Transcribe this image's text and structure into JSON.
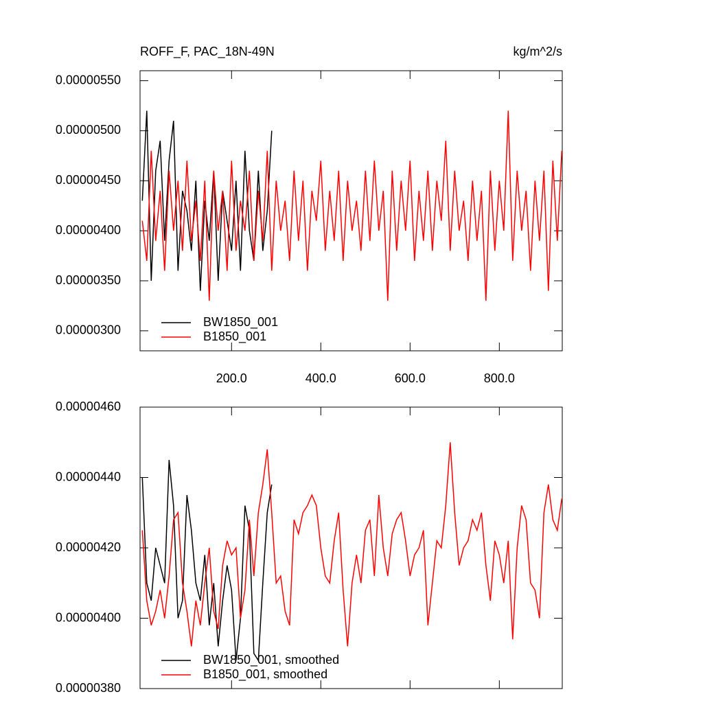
{
  "chart_data": [
    {
      "type": "line",
      "title": "ROFF_F, PAC_18N-49N",
      "units": "kg/m^2/s",
      "legend": "lower left",
      "xlim": [
        -5,
        941
      ],
      "xticks": [
        {
          "value": 200,
          "label": "200.0"
        },
        {
          "value": 400,
          "label": "400.0"
        },
        {
          "value": 600,
          "label": "600.0"
        },
        {
          "value": 800,
          "label": "800.0"
        }
      ],
      "ylim": [
        2.8e-06,
        5.6e-06
      ],
      "yticks": [
        {
          "value": 3e-06,
          "label": "0.00000300"
        },
        {
          "value": 3.5e-06,
          "label": "0.00000350"
        },
        {
          "value": 4e-06,
          "label": "0.00000400"
        },
        {
          "value": 4.5e-06,
          "label": "0.00000450"
        },
        {
          "value": 5e-06,
          "label": "0.00000500"
        },
        {
          "value": 5.5e-06,
          "label": "0.00000550"
        }
      ],
      "series": [
        {
          "name": "BW1850_001",
          "color": "#000000",
          "x": [
            0,
            10,
            20,
            30,
            40,
            50,
            60,
            70,
            80,
            90,
            100,
            110,
            120,
            130,
            140,
            150,
            160,
            170,
            180,
            190,
            200,
            210,
            220,
            230,
            240,
            250,
            260,
            270,
            280,
            290
          ],
          "values": [
            4.3e-06,
            5.2e-06,
            3.5e-06,
            4.6e-06,
            4.9e-06,
            3.9e-06,
            4.7e-06,
            5.1e-06,
            3.6e-06,
            4.4e-06,
            4.2e-06,
            3.8e-06,
            4.5e-06,
            3.4e-06,
            4.3e-06,
            3.9e-06,
            4.6e-06,
            3.5e-06,
            4.4e-06,
            4.1e-06,
            3.8e-06,
            4.5e-06,
            3.6e-06,
            4.8e-06,
            4e-06,
            3.7e-06,
            4.6e-06,
            3.8e-06,
            4.2e-06,
            5e-06
          ]
        },
        {
          "name": "B1850_001",
          "color": "#ff0000",
          "x": [
            0,
            10,
            20,
            30,
            40,
            50,
            60,
            70,
            80,
            90,
            100,
            110,
            120,
            130,
            140,
            150,
            160,
            170,
            180,
            190,
            200,
            210,
            220,
            230,
            240,
            250,
            260,
            270,
            280,
            290,
            300,
            310,
            320,
            330,
            340,
            350,
            360,
            370,
            380,
            390,
            400,
            410,
            420,
            430,
            440,
            450,
            460,
            470,
            480,
            490,
            500,
            510,
            520,
            530,
            540,
            550,
            560,
            570,
            580,
            590,
            600,
            610,
            620,
            630,
            640,
            650,
            660,
            670,
            680,
            690,
            700,
            710,
            720,
            730,
            740,
            750,
            760,
            770,
            780,
            790,
            800,
            810,
            820,
            830,
            840,
            850,
            860,
            870,
            880,
            890,
            900,
            910,
            920,
            930,
            940
          ],
          "values": [
            4.1e-06,
            3.7e-06,
            4.8e-06,
            3.9e-06,
            4.4e-06,
            3.6e-06,
            4.6e-06,
            4e-06,
            4.5e-06,
            3.8e-06,
            4.7e-06,
            3.9e-06,
            4.3e-06,
            3.7e-06,
            4.5e-06,
            3.3e-06,
            4.6e-06,
            4e-06,
            4.4e-06,
            3.6e-06,
            4.7e-06,
            3.8e-06,
            4.3e-06,
            4e-06,
            4.6e-06,
            3.7e-06,
            4.4e-06,
            3.9e-06,
            4.8e-06,
            3.6e-06,
            4.5e-06,
            4e-06,
            4.3e-06,
            3.7e-06,
            4.6e-06,
            3.9e-06,
            4.5e-06,
            3.6e-06,
            4.4e-06,
            4.1e-06,
            4.7e-06,
            3.8e-06,
            4.4e-06,
            3.9e-06,
            4.6e-06,
            3.7e-06,
            4.5e-06,
            4e-06,
            4.3e-06,
            3.8e-06,
            4.6e-06,
            3.9e-06,
            4.7e-06,
            4e-06,
            4.4e-06,
            3.3e-06,
            4.6e-06,
            3.8e-06,
            4.5e-06,
            4e-06,
            4.7e-06,
            3.7e-06,
            4.4e-06,
            3.9e-06,
            4.6e-06,
            3.8e-06,
            4.5e-06,
            4.1e-06,
            4.9e-06,
            3.8e-06,
            4.6e-06,
            4e-06,
            4.3e-06,
            3.7e-06,
            4.5e-06,
            3.9e-06,
            4.4e-06,
            3.3e-06,
            4.6e-06,
            3.8e-06,
            4.5e-06,
            4e-06,
            5.2e-06,
            3.7e-06,
            4.6e-06,
            4e-06,
            4.4e-06,
            3.6e-06,
            4.5e-06,
            3.9e-06,
            4.6e-06,
            3.4e-06,
            4.7e-06,
            3.9e-06,
            4.8e-06
          ]
        }
      ]
    },
    {
      "type": "line",
      "legend": "lower left",
      "xlim": [
        -5,
        941
      ],
      "xticks": [
        200,
        400,
        600,
        800
      ],
      "ylim": [
        3.8e-06,
        4.6e-06
      ],
      "yticks": [
        {
          "value": 3.8e-06,
          "label": "0.00000380"
        },
        {
          "value": 4e-06,
          "label": "0.00000400"
        },
        {
          "value": 4.2e-06,
          "label": "0.00000420"
        },
        {
          "value": 4.4e-06,
          "label": "0.00000440"
        },
        {
          "value": 4.6e-06,
          "label": "0.00000460"
        }
      ],
      "series": [
        {
          "name": "BW1850_001, smoothed",
          "color": "#000000",
          "x": [
            0,
            10,
            20,
            30,
            40,
            50,
            60,
            70,
            80,
            90,
            100,
            110,
            120,
            130,
            140,
            150,
            160,
            170,
            180,
            190,
            200,
            210,
            220,
            230,
            240,
            250,
            260,
            270,
            280,
            290
          ],
          "values": [
            4.4e-06,
            4.1e-06,
            4.05e-06,
            4.2e-06,
            4.15e-06,
            4.1e-06,
            4.45e-06,
            4.32e-06,
            4e-06,
            4.05e-06,
            4.35e-06,
            4.25e-06,
            4.1e-06,
            4.05e-06,
            4.18e-06,
            3.98e-06,
            4.1e-06,
            3.92e-06,
            4.05e-06,
            4.15e-06,
            4.08e-06,
            3.88e-06,
            4e-06,
            4.32e-06,
            4.25e-06,
            3.9e-06,
            3.88e-06,
            4.1e-06,
            4.3e-06,
            4.38e-06
          ]
        },
        {
          "name": "B1850_001, smoothed",
          "color": "#ff0000",
          "x": [
            0,
            10,
            20,
            30,
            40,
            50,
            60,
            70,
            80,
            90,
            100,
            110,
            120,
            130,
            140,
            150,
            160,
            170,
            180,
            190,
            200,
            210,
            220,
            230,
            240,
            250,
            260,
            270,
            280,
            290,
            300,
            310,
            320,
            330,
            340,
            350,
            360,
            370,
            380,
            390,
            400,
            410,
            420,
            430,
            440,
            450,
            460,
            470,
            480,
            490,
            500,
            510,
            520,
            530,
            540,
            550,
            560,
            570,
            580,
            590,
            600,
            610,
            620,
            630,
            640,
            650,
            660,
            670,
            680,
            690,
            700,
            710,
            720,
            730,
            740,
            750,
            760,
            770,
            780,
            790,
            800,
            810,
            820,
            830,
            840,
            850,
            860,
            870,
            880,
            890,
            900,
            910,
            920,
            930,
            940
          ],
          "values": [
            4.25e-06,
            4.05e-06,
            3.98e-06,
            4.02e-06,
            4.08e-06,
            4e-06,
            4.12e-06,
            4.28e-06,
            4.3e-06,
            4.1e-06,
            4.02e-06,
            3.92e-06,
            4.05e-06,
            3.98e-06,
            4.1e-06,
            4.2e-06,
            4.02e-06,
            3.97e-06,
            4.15e-06,
            4.22e-06,
            4.18e-06,
            4.2e-06,
            4e-06,
            4.08e-06,
            4.28e-06,
            4.12e-06,
            4.3e-06,
            4.38e-06,
            4.48e-06,
            4.3e-06,
            4.1e-06,
            4.12e-06,
            4.02e-06,
            3.98e-06,
            4.28e-06,
            4.24e-06,
            4.3e-06,
            4.32e-06,
            4.35e-06,
            4.32e-06,
            4.2e-06,
            4.12e-06,
            4.1e-06,
            4.22e-06,
            4.3e-06,
            4.08e-06,
            3.92e-06,
            4.1e-06,
            4.18e-06,
            4.1e-06,
            4.25e-06,
            4.28e-06,
            4.12e-06,
            4.35e-06,
            4.2e-06,
            4.12e-06,
            4.24e-06,
            4.28e-06,
            4.3e-06,
            4.22e-06,
            4.12e-06,
            4.18e-06,
            4.2e-06,
            4.25e-06,
            3.98e-06,
            4.1e-06,
            4.22e-06,
            4.2e-06,
            4.32e-06,
            4.5e-06,
            4.3e-06,
            4.15e-06,
            4.2e-06,
            4.22e-06,
            4.28e-06,
            4.25e-06,
            4.3e-06,
            4.15e-06,
            4.05e-06,
            4.22e-06,
            4.18e-06,
            4.1e-06,
            4.22e-06,
            3.94e-06,
            4.2e-06,
            4.32e-06,
            4.28e-06,
            4.1e-06,
            4.08e-06,
            4e-06,
            4.3e-06,
            4.38e-06,
            4.28e-06,
            4.25e-06,
            4.34e-06
          ]
        }
      ]
    }
  ]
}
